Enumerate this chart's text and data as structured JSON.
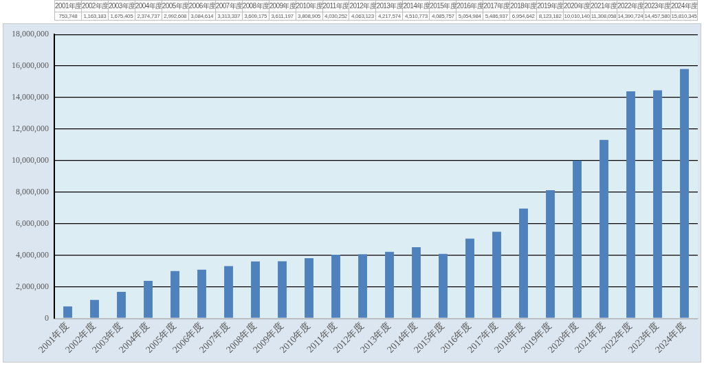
{
  "chart_data": {
    "type": "bar",
    "categories": [
      "2001年度",
      "2002年度",
      "2003年度",
      "2004年度",
      "2005年度",
      "2006年度",
      "2007年度",
      "2008年度",
      "2009年度",
      "2010年度",
      "2011年度",
      "2012年度",
      "2013年度",
      "2014年度",
      "2015年度",
      "2016年度",
      "2017年度",
      "2018年度",
      "2019年度",
      "2020年度",
      "2021年度",
      "2022年度",
      "2023年度",
      "2024年度"
    ],
    "values": [
      753748,
      1163183,
      1675405,
      2374737,
      2992608,
      3084614,
      3313337,
      3609175,
      3611197,
      3808905,
      4030252,
      4063123,
      4217574,
      4510773,
      4085757,
      5054984,
      5486937,
      6954642,
      8123182,
      10010140,
      11308058,
      14390724,
      14457580,
      15810345
    ],
    "value_labels": [
      "753,748",
      "1,163,183",
      "1,675,405",
      "2,374,737",
      "2,992,608",
      "3,084,614",
      "3,313,337",
      "3,609,175",
      "3,611,197",
      "3,808,905",
      "4,030,252",
      "4,063,123",
      "4,217,574",
      "4,510,773",
      "4,085,757",
      "5,054,984",
      "5,486,937",
      "6,954,642",
      "8,123,182",
      "10,010,140",
      "11,308,058",
      "14,390,724",
      "14,457,580",
      "15,810,345"
    ],
    "color": "#4f81bd",
    "ylim": [
      0,
      18000000
    ],
    "yticks": [
      0,
      {
        "value": 2000000,
        "label": "2,000,000"
      },
      {
        "value": 4000000,
        "label": "4,000,000"
      },
      {
        "value": 6000000,
        "label": "6,000,000"
      },
      {
        "value": 8000000,
        "label": "8,000,000"
      },
      {
        "value": 10000000,
        "label": "10,000,000"
      },
      {
        "value": 12000000,
        "label": "12,000,000"
      },
      {
        "value": 14000000,
        "label": "14,000,000"
      },
      {
        "value": 16000000,
        "label": "16,000,000"
      },
      {
        "value": 18000000,
        "label": "18,000,000"
      }
    ],
    "grid": "y",
    "legend": false
  }
}
